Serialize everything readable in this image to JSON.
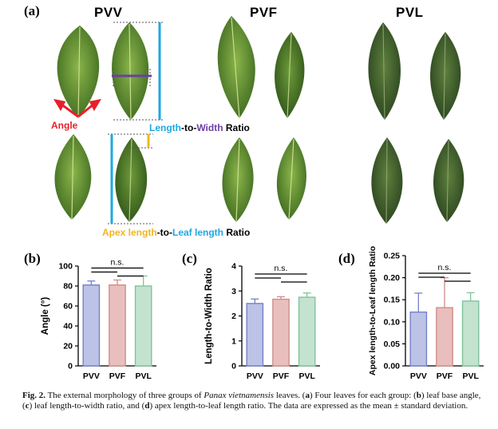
{
  "panel_a": {
    "label": "(a)",
    "groups": [
      "PVV",
      "PVF",
      "PVL"
    ],
    "angle_label": "Angle",
    "ltw": {
      "part1": "Length",
      "part2": "-to-",
      "part3": "Width",
      "part4": " Ratio"
    },
    "apex": {
      "part1": "Apex length",
      "part2": "-to-",
      "part3": "Leaf length",
      "part4": " Ratio"
    },
    "colors": {
      "angle": "#e8202a",
      "length": "#1ea7e1",
      "width": "#6b3fa0",
      "apex": "#f2b51c",
      "leaf_dark": "#3f6a22",
      "leaf_light": "#7aa63a"
    }
  },
  "chart_data": [
    {
      "panel": "(b)",
      "type": "bar",
      "categories": [
        "PVV",
        "PVF",
        "PVL"
      ],
      "values": [
        81,
        81,
        80
      ],
      "errors": [
        4,
        5,
        10
      ],
      "ylabel": "Angle (°)",
      "ylim": [
        0,
        100
      ],
      "yticks": [
        "0",
        "20",
        "40",
        "60",
        "80",
        "100"
      ],
      "annotation": "n.s."
    },
    {
      "panel": "(c)",
      "type": "bar",
      "categories": [
        "PVV",
        "PVF",
        "PVL"
      ],
      "values": [
        2.5,
        2.67,
        2.75
      ],
      "errors": [
        0.18,
        0.1,
        0.17
      ],
      "ylabel": "Length-to-Width Ratio",
      "ylim": [
        0,
        4
      ],
      "yticks": [
        "0",
        "1",
        "2",
        "3",
        "4"
      ],
      "annotation": "n.s."
    },
    {
      "panel": "(d)",
      "type": "bar",
      "categories": [
        "PVV",
        "PVF",
        "PVL"
      ],
      "values": [
        0.122,
        0.132,
        0.147
      ],
      "errors": [
        0.043,
        0.068,
        0.019
      ],
      "ylabel": "Apex length-to-Leaf length Ratio",
      "ylim": [
        0,
        0.25
      ],
      "yticks": [
        "0.00",
        "0.05",
        "0.10",
        "0.15",
        "0.20",
        "0.25"
      ],
      "annotation": "n.s."
    }
  ],
  "series_colors": {
    "fill": [
      "#bcc3e6",
      "#e9bfbd",
      "#c3e3cf"
    ],
    "stroke": [
      "#7581c8",
      "#cf8d89",
      "#7fc39b"
    ]
  },
  "caption": {
    "fig": "Fig. 2.",
    "t1": "  The external morphology of three groups of ",
    "species": "Panax vietnamensis",
    "t2": " leaves. (",
    "a": "a",
    "t3": ") Four leaves for each group: (",
    "b": "b",
    "t4": ") leaf base angle, (",
    "c": "c",
    "t5": ") leaf length-to-width ratio, and (",
    "d": "d",
    "t6": ") apex length-to-leaf length ratio. The data are expressed as the mean ± standard deviation."
  }
}
